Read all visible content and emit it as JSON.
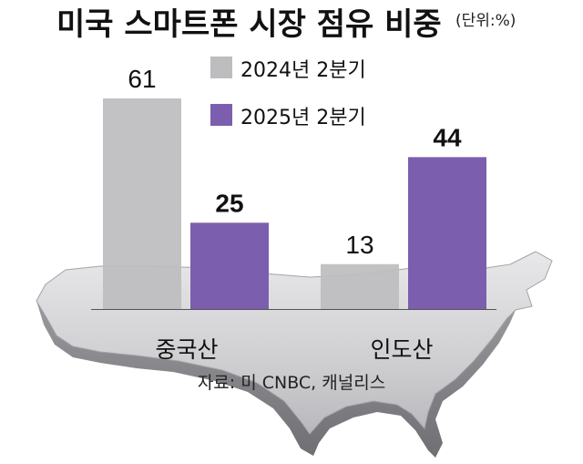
{
  "colors": {
    "series_2024": "#bdbdbf",
    "series_2025": "#7b5fae",
    "map_fill": "#d6d6d8",
    "map_edge": "#8e8e92"
  },
  "chart_data": {
    "type": "bar",
    "title": "미국 스마트폰 시장 점유 비중",
    "unit": "(단위:%)",
    "categories": [
      "중국산",
      "인도산"
    ],
    "series": [
      {
        "name": "2024년 2분기",
        "values": [
          61,
          13
        ]
      },
      {
        "name": "2025년 2분기",
        "values": [
          25,
          44
        ]
      }
    ],
    "data_labels": [
      [
        "61",
        "13"
      ],
      [
        "25",
        "44"
      ]
    ],
    "ylim": [
      0,
      61
    ],
    "grid": false,
    "legend_position": "top-right",
    "source": "자료: 미 CNBC, 캐널리스"
  }
}
